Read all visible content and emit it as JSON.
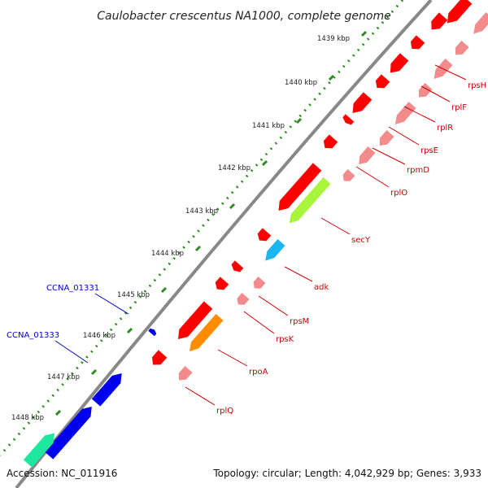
{
  "title": "Caulobacter crescentus NA1000, complete genome",
  "footer": {
    "accession": "Accession: NC_011916",
    "summary": "Topology: circular; Length: 4,042,929 bp; Genes: 3,933"
  },
  "ticks": [
    "1439 kbp",
    "1440 kbp",
    "1441 kbp",
    "1442 kbp",
    "1443 kbp",
    "1444 kbp",
    "1445 kbp",
    "1446 kbp",
    "1447 kbp",
    "1448 kbp"
  ],
  "gene_labels": [
    "rpsH",
    "rplF",
    "rplR",
    "rpsE",
    "rpmD",
    "rplO",
    "secY",
    "adk",
    "rpsM",
    "rpsK",
    "rpoA",
    "rplQ"
  ],
  "outer_labels": [
    "CCNA_01331",
    "CCNA_01333"
  ],
  "colors": {
    "red": "#ff0000",
    "pink": "#f28c8c",
    "lime": "#a8f53b",
    "cyan": "#1ab6f0",
    "orange": "#ff8c00",
    "blue": "#0000ee",
    "teal": "#1ee8a0",
    "dots": "#2e8b22",
    "backbone": "#888888",
    "label_red": "#cc0000",
    "label_blue": "#0000cc"
  }
}
